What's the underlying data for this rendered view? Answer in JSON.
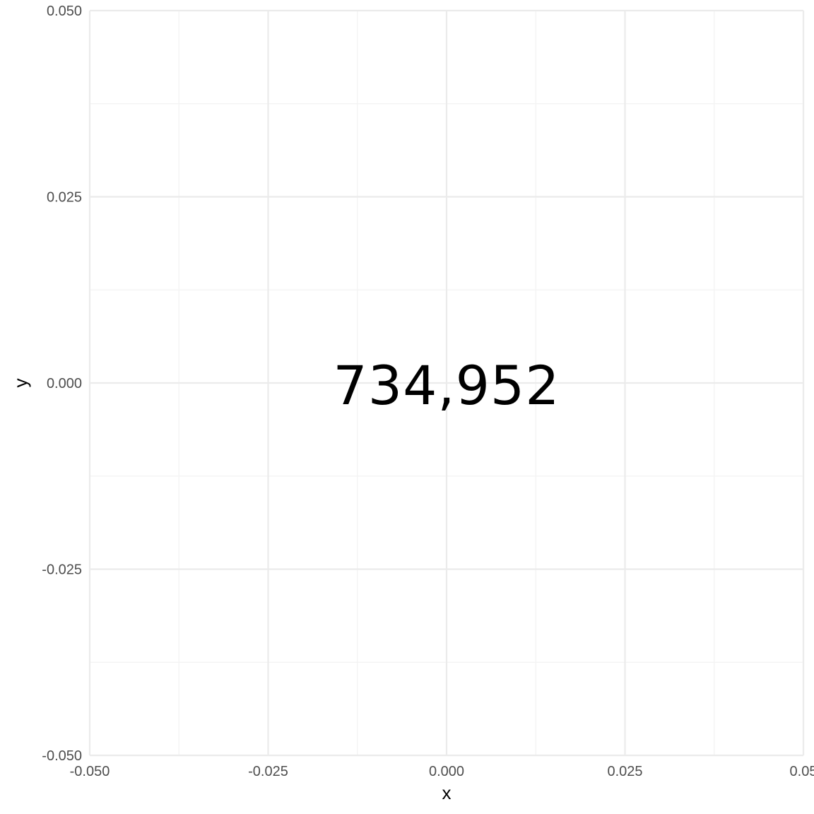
{
  "chart_data": {
    "type": "scatter",
    "xlabel": "x",
    "ylabel": "y",
    "xlim": [
      -0.05,
      0.05
    ],
    "ylim": [
      -0.05,
      0.05
    ],
    "x_ticks": [
      -0.05,
      -0.025,
      0.0,
      0.025,
      0.05
    ],
    "y_ticks": [
      -0.05,
      -0.025,
      0.0,
      0.025,
      0.05
    ],
    "x_tick_labels": [
      "-0.050",
      "-0.025",
      "0.000",
      "0.025",
      "0.05"
    ],
    "y_tick_labels": [
      "-0.050",
      "-0.025",
      "0.000",
      "0.025",
      "0.050"
    ],
    "grid": true,
    "annotations": [
      {
        "x": 0.0,
        "y": 0.0,
        "text": "734,952"
      }
    ],
    "colors": {
      "grid_major": "#ebebeb",
      "grid_minor": "#f3f3f3",
      "tick_text": "#4d4d4d",
      "text": "#000000"
    }
  }
}
